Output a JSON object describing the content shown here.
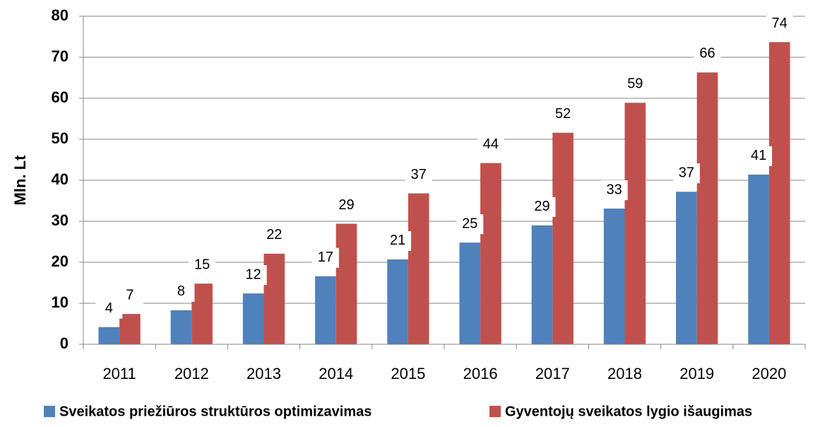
{
  "chart_data": {
    "type": "bar",
    "y_label": "Mln. Lt",
    "categories": [
      "2011",
      "2012",
      "2013",
      "2014",
      "2015",
      "2016",
      "2017",
      "2018",
      "2019",
      "2020"
    ],
    "series": [
      {
        "name": "Sveikatos priežiūros struktūros optimizavimas",
        "color": "#4f81bd",
        "values": [
          4.2,
          8.3,
          12.4,
          16.6,
          20.7,
          24.8,
          29.0,
          33.1,
          37.2,
          41.4
        ],
        "value_labels": [
          "4",
          "8",
          "12",
          "17",
          "21",
          "25",
          "29",
          "33",
          "37",
          "41"
        ]
      },
      {
        "name": "Gyventojų sveikatos lygio išaugimas",
        "color": "#c0504d",
        "values": [
          7.4,
          14.8,
          22.1,
          29.4,
          36.8,
          44.2,
          51.6,
          58.9,
          66.3,
          73.7
        ],
        "value_labels": [
          "7",
          "15",
          "22",
          "29",
          "37",
          "44",
          "52",
          "59",
          "66",
          "74"
        ]
      }
    ],
    "ylim": [
      0,
      80
    ],
    "yticks": [
      0,
      10,
      20,
      30,
      40,
      50,
      60,
      70,
      80
    ],
    "grid": true,
    "legend": "bottom"
  }
}
